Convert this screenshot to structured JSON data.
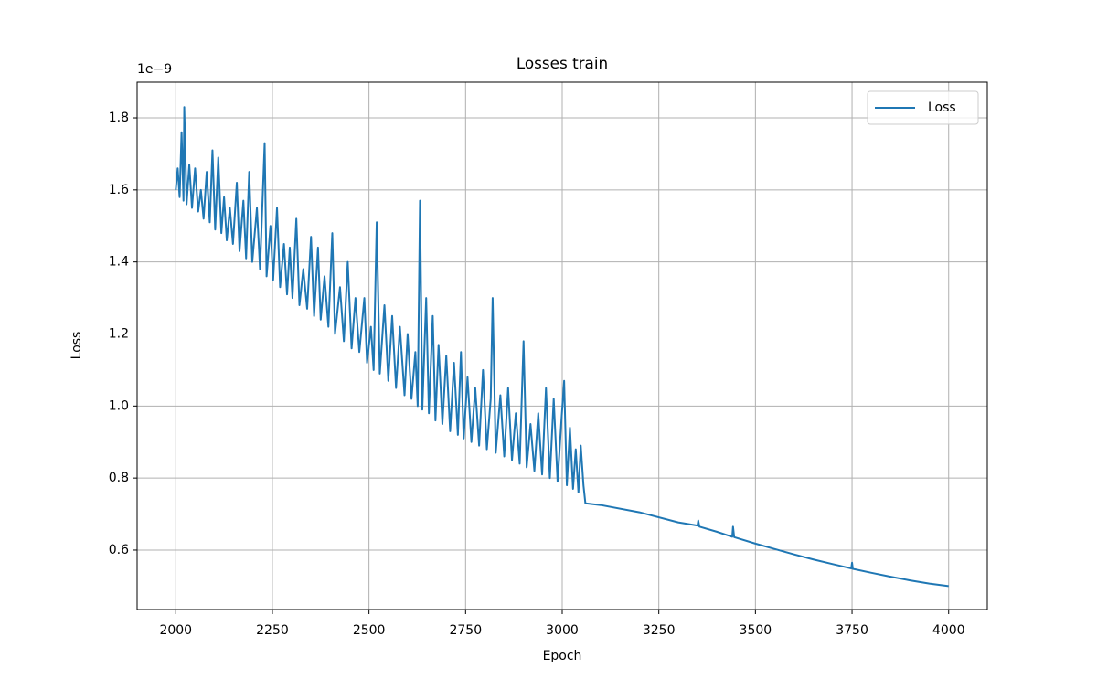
{
  "chart_data": {
    "type": "line",
    "title": "Losses train",
    "xlabel": "Epoch",
    "ylabel": "Loss",
    "y_offset_text": "1e−9",
    "x": [
      2000,
      2005,
      2010,
      2015,
      2020,
      2022,
      2028,
      2035,
      2042,
      2050,
      2058,
      2065,
      2072,
      2080,
      2088,
      2095,
      2102,
      2110,
      2118,
      2125,
      2132,
      2140,
      2148,
      2158,
      2165,
      2175,
      2182,
      2190,
      2198,
      2210,
      2218,
      2230,
      2235,
      2245,
      2252,
      2262,
      2270,
      2280,
      2288,
      2295,
      2302,
      2312,
      2320,
      2330,
      2340,
      2350,
      2358,
      2368,
      2375,
      2385,
      2395,
      2405,
      2412,
      2425,
      2435,
      2445,
      2455,
      2465,
      2475,
      2488,
      2495,
      2505,
      2512,
      2520,
      2528,
      2540,
      2550,
      2560,
      2570,
      2580,
      2592,
      2600,
      2610,
      2620,
      2626,
      2632,
      2638,
      2648,
      2655,
      2665,
      2672,
      2680,
      2690,
      2700,
      2710,
      2720,
      2730,
      2738,
      2745,
      2755,
      2765,
      2775,
      2785,
      2795,
      2805,
      2815,
      2820,
      2828,
      2840,
      2850,
      2860,
      2870,
      2880,
      2890,
      2900,
      2908,
      2918,
      2928,
      2938,
      2948,
      2958,
      2968,
      2978,
      2988,
      2998,
      3005,
      3012,
      3020,
      3028,
      3035,
      3042,
      3048,
      3055,
      3060,
      3100,
      3200,
      3300,
      3350,
      3352,
      3355,
      3400,
      3440,
      3442,
      3445,
      3500,
      3550,
      3600,
      3650,
      3700,
      3748,
      3750,
      3752,
      3800,
      3850,
      3900,
      3950,
      4000
    ],
    "series": [
      {
        "name": "Loss",
        "color": "#1f77b4",
        "values": [
          1.6,
          1.66,
          1.58,
          1.76,
          1.57,
          1.83,
          1.56,
          1.67,
          1.55,
          1.66,
          1.54,
          1.6,
          1.52,
          1.65,
          1.51,
          1.71,
          1.49,
          1.69,
          1.48,
          1.58,
          1.46,
          1.55,
          1.45,
          1.62,
          1.43,
          1.57,
          1.41,
          1.65,
          1.4,
          1.55,
          1.38,
          1.73,
          1.36,
          1.5,
          1.35,
          1.55,
          1.33,
          1.45,
          1.31,
          1.44,
          1.3,
          1.52,
          1.28,
          1.38,
          1.27,
          1.47,
          1.25,
          1.44,
          1.24,
          1.36,
          1.22,
          1.48,
          1.2,
          1.33,
          1.18,
          1.4,
          1.16,
          1.3,
          1.15,
          1.3,
          1.12,
          1.22,
          1.1,
          1.51,
          1.09,
          1.28,
          1.07,
          1.25,
          1.05,
          1.22,
          1.03,
          1.2,
          1.02,
          1.15,
          1.0,
          1.57,
          0.99,
          1.3,
          0.98,
          1.25,
          0.96,
          1.17,
          0.95,
          1.14,
          0.93,
          1.12,
          0.92,
          1.15,
          0.91,
          1.08,
          0.9,
          1.05,
          0.89,
          1.1,
          0.88,
          1.02,
          1.3,
          0.87,
          1.03,
          0.86,
          1.05,
          0.85,
          0.98,
          0.84,
          1.18,
          0.83,
          0.95,
          0.82,
          0.98,
          0.81,
          1.05,
          0.8,
          1.02,
          0.79,
          0.96,
          1.07,
          0.78,
          0.94,
          0.77,
          0.88,
          0.76,
          0.89,
          0.78,
          0.73,
          0.725,
          0.705,
          0.677,
          0.668,
          0.682,
          0.665,
          0.651,
          0.637,
          0.665,
          0.636,
          0.618,
          0.603,
          0.588,
          0.574,
          0.561,
          0.549,
          0.565,
          0.548,
          0.537,
          0.526,
          0.516,
          0.507,
          0.5
        ]
      }
    ],
    "xlim": [
      1900,
      4100
    ],
    "xticks": [
      2000,
      2250,
      2500,
      2750,
      3000,
      3250,
      3500,
      3750,
      4000
    ],
    "ylim": [
      0.435,
      1.899
    ],
    "yticks": [
      0.6,
      0.8,
      {
        "value": 1.0,
        "label": "1.0"
      },
      1.2,
      1.4,
      1.6,
      1.8
    ],
    "grid": true,
    "legend": "upper right"
  }
}
